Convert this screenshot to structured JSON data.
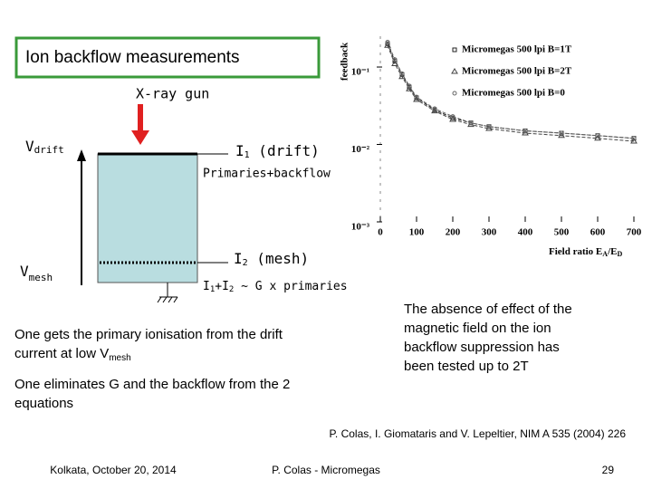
{
  "chart_data": {
    "type": "line",
    "y_label": "feedback",
    "x_label": {
      "text": "Field ratio E",
      "sub1": "A",
      "mid": "/E",
      "sub2": "D"
    },
    "xlim": [
      0,
      700
    ],
    "xticks": [
      0,
      100,
      200,
      300,
      400,
      500,
      600,
      700
    ],
    "ylim": [
      0.001,
      0.25
    ],
    "ylog": true,
    "yticks": [
      {
        "value": 0.1,
        "label": "10⁻¹"
      },
      {
        "value": 0.01,
        "label": "10⁻²"
      },
      {
        "value": 0.001,
        "label": "10⁻³"
      }
    ],
    "x": [
      20,
      40,
      60,
      80,
      100,
      150,
      200,
      250,
      300,
      400,
      500,
      600,
      700
    ],
    "series": [
      {
        "name": "Micromegas 500 lpi B=1T",
        "color": "#222222",
        "marker": "square",
        "values": [
          0.2,
          0.12,
          0.08,
          0.055,
          0.04,
          0.028,
          0.022,
          0.019,
          0.017,
          0.015,
          0.014,
          0.013,
          0.012
        ]
      },
      {
        "name": "Micromegas 500 lpi B=2T",
        "color": "#444444",
        "marker": "triangle",
        "values": [
          0.19,
          0.11,
          0.075,
          0.052,
          0.038,
          0.027,
          0.021,
          0.018,
          0.016,
          0.014,
          0.013,
          0.012,
          0.011
        ]
      },
      {
        "name": "Micromegas 500 lpi B=0",
        "color": "#666666",
        "marker": "circle",
        "values": [
          0.21,
          0.125,
          0.082,
          0.057,
          0.041,
          0.029,
          0.023,
          0.019,
          0.017,
          0.015,
          0.014,
          0.013,
          0.012
        ]
      }
    ]
  },
  "slide": {
    "title": "Ion backflow measurements",
    "xray": "X-ray gun",
    "vdrift": {
      "main": "V",
      "sub": "drift"
    },
    "vmesh": {
      "main": "V",
      "sub": "mesh"
    },
    "i1": {
      "main": "I",
      "sub": "1",
      "rest": " (drift)"
    },
    "prim": "Primaries+backflow",
    "i2": {
      "main": "I",
      "sub": "2",
      "rest": " (mesh)"
    },
    "sum": {
      "a": "I",
      "a_sub": "1",
      "b": "+I",
      "b_sub": "2",
      "rest": " ~ G x primaries"
    },
    "para1": {
      "line1": "One gets the primary ionisation from the drift",
      "line2": "current at low V",
      "sub": "mesh"
    },
    "para2": {
      "line1": "One eliminates G and the backflow from the 2",
      "line2": "equations"
    },
    "note": [
      "The absence of effect of the",
      "magnetic field on the ion",
      "backflow suppression has",
      "been tested up to 2T"
    ],
    "citation": "P. Colas, I. Giomataris and V. Lepeltier, NIM A 535 (2004) 226",
    "footer": {
      "left": "Kolkata, October 20, 2014",
      "center": "P. Colas - Micromegas",
      "page": "29"
    }
  }
}
